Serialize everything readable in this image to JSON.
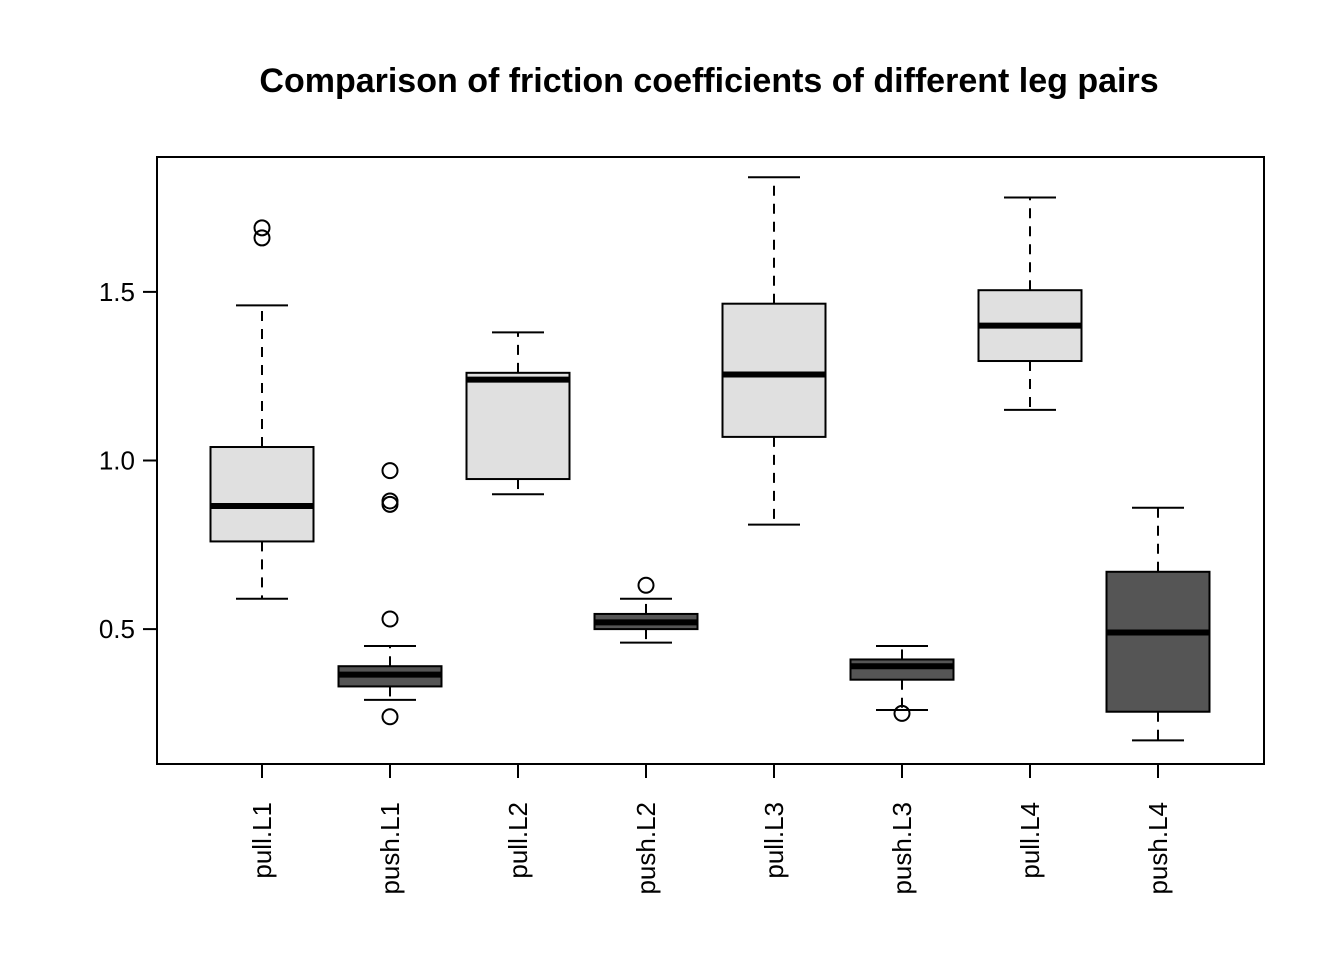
{
  "chart_data": {
    "type": "boxplot",
    "title": "Comparison of friction coefficients of different leg pairs",
    "xlabel": "",
    "ylabel": "",
    "ylim": [
      0.1,
      1.9
    ],
    "yticks": [
      "0.5",
      "1.0",
      "1.5"
    ],
    "grid": false,
    "colors": {
      "light": "#e0e0e0",
      "dark": "#555555",
      "stroke": "#000000"
    },
    "categories": [
      "pull.L1",
      "push.L1",
      "pull.L2",
      "push.L2",
      "pull.L3",
      "push.L3",
      "pull.L4",
      "push.L4"
    ],
    "boxes": [
      {
        "label": "pull.L1",
        "fill": "light",
        "whisker_low": 0.59,
        "q1": 0.76,
        "median": 0.865,
        "q3": 1.04,
        "whisker_high": 1.46,
        "outliers": [
          1.66,
          1.69
        ]
      },
      {
        "label": "push.L1",
        "fill": "dark",
        "whisker_low": 0.29,
        "q1": 0.33,
        "median": 0.365,
        "q3": 0.39,
        "whisker_high": 0.45,
        "outliers": [
          0.24,
          0.53,
          0.87,
          0.88,
          0.97
        ]
      },
      {
        "label": "pull.L2",
        "fill": "light",
        "whisker_low": 0.9,
        "q1": 0.945,
        "median": 1.24,
        "q3": 1.26,
        "whisker_high": 1.38,
        "outliers": []
      },
      {
        "label": "push.L2",
        "fill": "dark",
        "whisker_low": 0.46,
        "q1": 0.5,
        "median": 0.52,
        "q3": 0.545,
        "whisker_high": 0.59,
        "outliers": [
          0.63
        ]
      },
      {
        "label": "pull.L3",
        "fill": "light",
        "whisker_low": 0.81,
        "q1": 1.07,
        "median": 1.255,
        "q3": 1.465,
        "whisker_high": 1.84,
        "outliers": []
      },
      {
        "label": "push.L3",
        "fill": "dark",
        "whisker_low": 0.26,
        "q1": 0.35,
        "median": 0.39,
        "q3": 0.41,
        "whisker_high": 0.45,
        "outliers": [
          0.25
        ]
      },
      {
        "label": "pull.L4",
        "fill": "light",
        "whisker_low": 1.15,
        "q1": 1.295,
        "median": 1.4,
        "q3": 1.505,
        "whisker_high": 1.78,
        "outliers": []
      },
      {
        "label": "push.L4",
        "fill": "dark",
        "whisker_low": 0.17,
        "q1": 0.255,
        "median": 0.49,
        "q3": 0.67,
        "whisker_high": 0.86,
        "outliers": []
      }
    ]
  }
}
